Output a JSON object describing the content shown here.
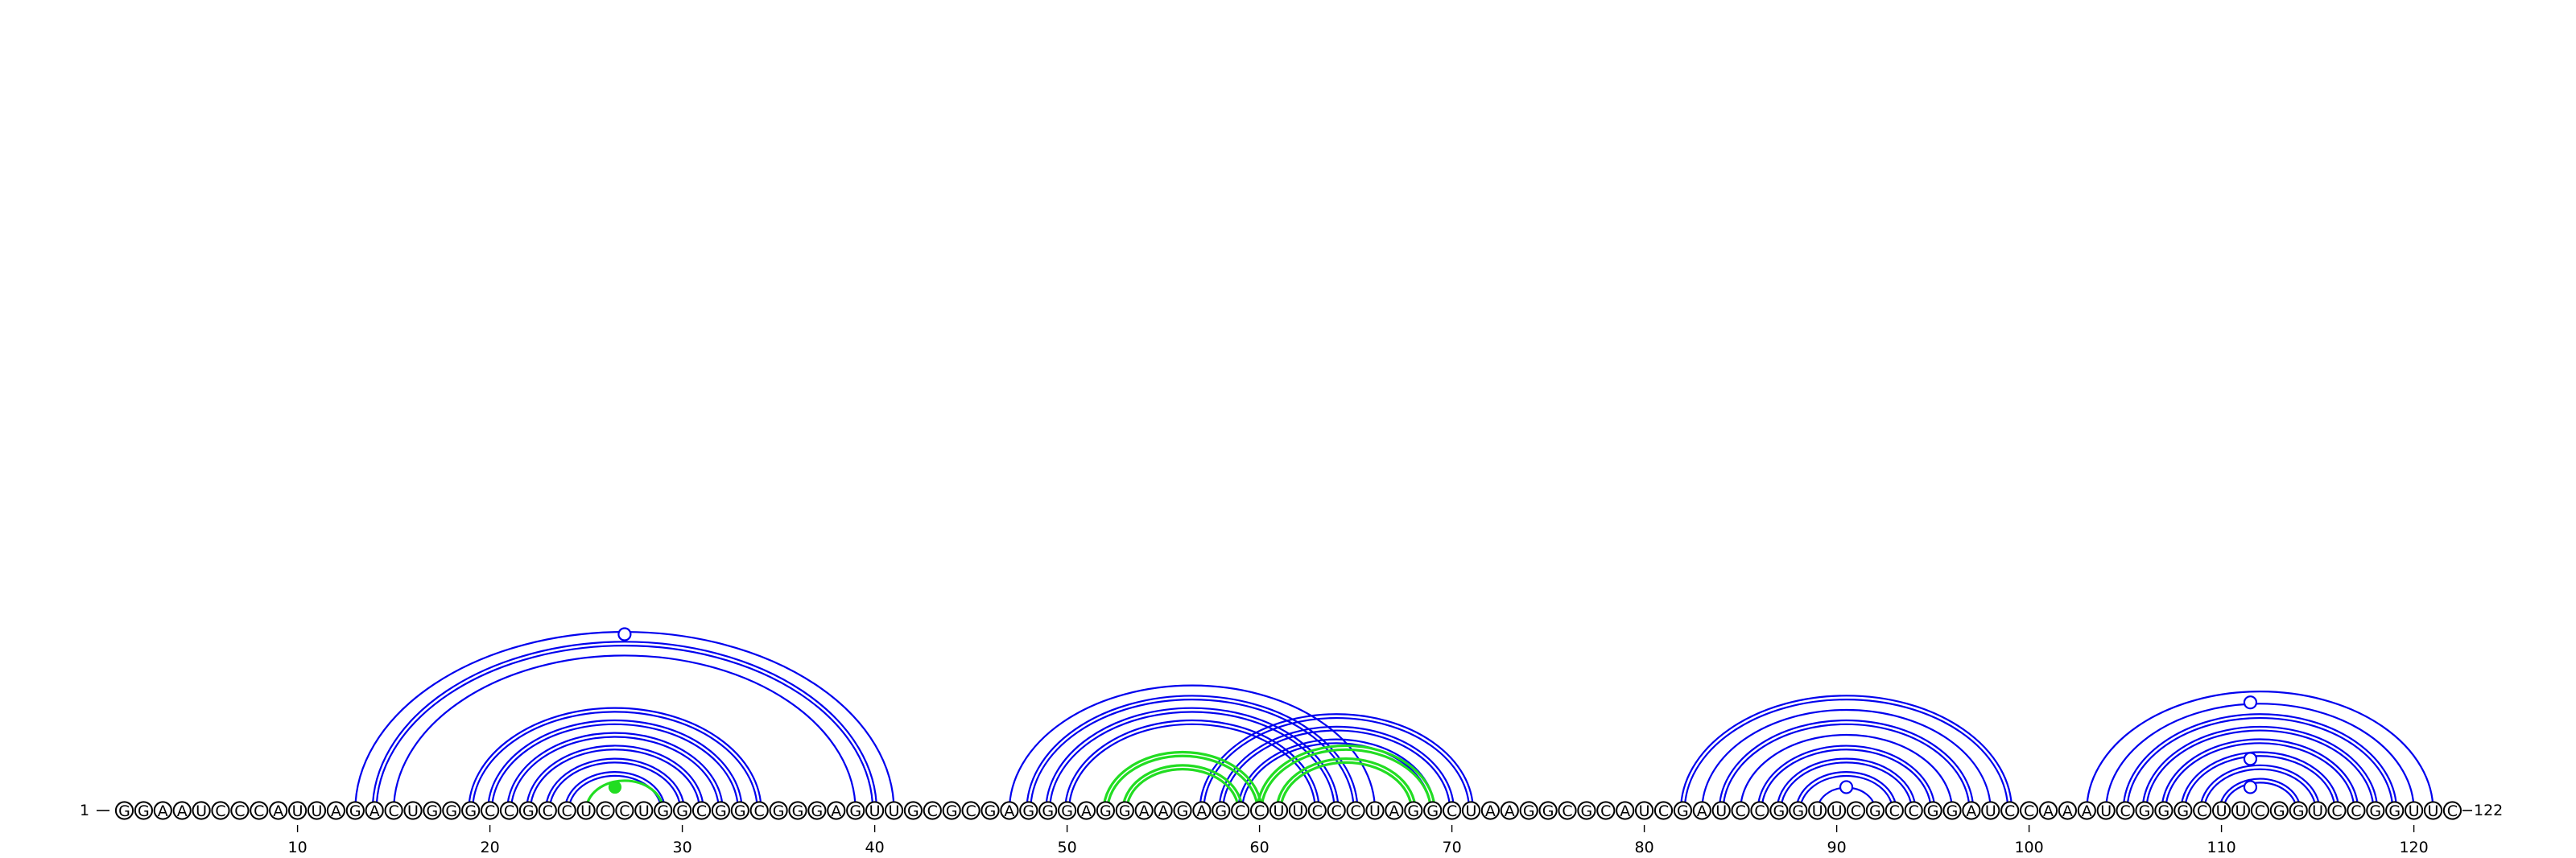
{
  "sequence": "GGAAUCCCAUUAGACUGGGCCGCCUCCUGGCGGCGGGAGUUGCGCGAGGGAGGAAGAGCCUUCCCUAGGCUAAGGCGCAUCGAUCCGGUUCGCCGGAUCCAAAUCGGGCUUCGGUCCGGUUC",
  "start_label": "1",
  "end_label": "122",
  "ticks": [
    "10",
    "20",
    "30",
    "40",
    "50",
    "60",
    "70",
    "80",
    "90",
    "100",
    "110",
    "120"
  ],
  "colors": {
    "stem": "#0000ee",
    "pseudoknot": "#22dd22",
    "text": "#000000"
  },
  "blue_helices": [
    {
      "i": 13,
      "j": 41,
      "lines": 1
    },
    {
      "i": 14,
      "j": 40,
      "lines": 2
    },
    {
      "i": 15,
      "j": 39,
      "lines": 1
    },
    {
      "i": 19,
      "j": 34,
      "lines": 2
    },
    {
      "i": 20,
      "j": 33,
      "lines": 2
    },
    {
      "i": 21,
      "j": 32,
      "lines": 2
    },
    {
      "i": 22,
      "j": 31,
      "lines": 2
    },
    {
      "i": 23,
      "j": 30,
      "lines": 2
    },
    {
      "i": 24,
      "j": 29,
      "lines": 2
    },
    {
      "i": 47,
      "j": 66,
      "lines": 1
    },
    {
      "i": 48,
      "j": 65,
      "lines": 2
    },
    {
      "i": 49,
      "j": 64,
      "lines": 2
    },
    {
      "i": 50,
      "j": 63,
      "lines": 2
    },
    {
      "i": 57,
      "j": 71,
      "lines": 2
    },
    {
      "i": 58,
      "j": 70,
      "lines": 2
    },
    {
      "i": 59,
      "j": 69,
      "lines": 2
    },
    {
      "i": 82,
      "j": 99,
      "lines": 2
    },
    {
      "i": 83,
      "j": 98,
      "lines": 1
    },
    {
      "i": 84,
      "j": 97,
      "lines": 2
    },
    {
      "i": 85,
      "j": 96,
      "lines": 1
    },
    {
      "i": 86,
      "j": 95,
      "lines": 2
    },
    {
      "i": 87,
      "j": 94,
      "lines": 2
    },
    {
      "i": 88,
      "j": 93,
      "lines": 2
    },
    {
      "i": 89,
      "j": 92,
      "lines": 1
    },
    {
      "i": 103,
      "j": 121,
      "lines": 1
    },
    {
      "i": 104,
      "j": 120,
      "lines": 1
    },
    {
      "i": 105,
      "j": 119,
      "lines": 2
    },
    {
      "i": 106,
      "j": 118,
      "lines": 2
    },
    {
      "i": 107,
      "j": 117,
      "lines": 2
    },
    {
      "i": 108,
      "j": 116,
      "lines": 2
    },
    {
      "i": 109,
      "j": 115,
      "lines": 2
    },
    {
      "i": 110,
      "j": 114,
      "lines": 2
    }
  ],
  "green_helices": [
    {
      "i": 25,
      "j": 29,
      "lines": 1
    },
    {
      "i": 52,
      "j": 60,
      "lines": 2
    },
    {
      "i": 53,
      "j": 59,
      "lines": 2
    },
    {
      "i": 60,
      "j": 69,
      "lines": 2
    },
    {
      "i": 61,
      "j": 68,
      "lines": 2
    }
  ],
  "markers": [
    {
      "pos": 27.0,
      "height": 0.905,
      "style": "open"
    },
    {
      "pos": 26.5,
      "height": 0.12,
      "style": "filled-green"
    },
    {
      "pos": 90.5,
      "height": 0.12,
      "style": "open"
    },
    {
      "pos": 111.5,
      "height": 0.555,
      "style": "open"
    },
    {
      "pos": 111.5,
      "height": 0.265,
      "style": "open"
    },
    {
      "pos": 111.5,
      "height": 0.12,
      "style": "open"
    }
  ]
}
